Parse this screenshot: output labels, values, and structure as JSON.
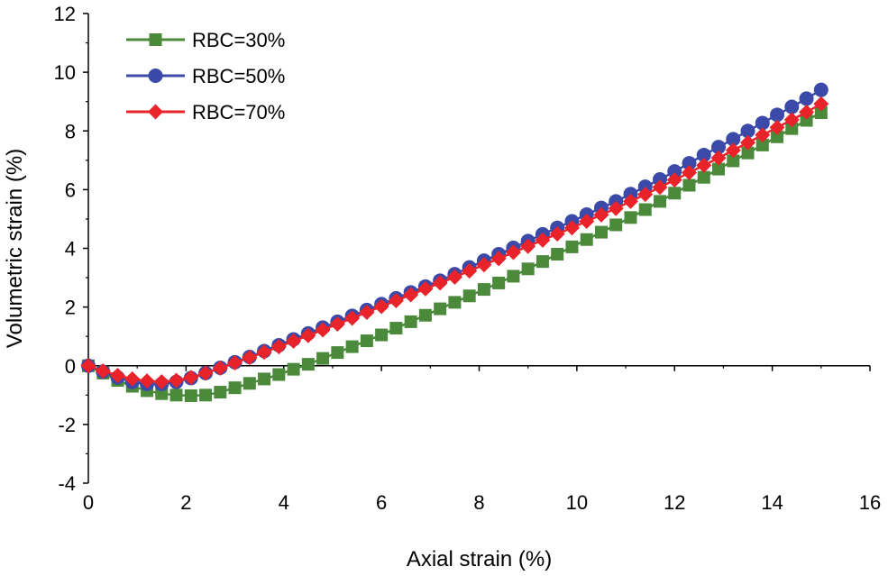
{
  "chart_data": {
    "type": "line",
    "title": "",
    "xlabel": "Axial strain (%)",
    "ylabel": "Volumetric strain (%)",
    "xlim": [
      0,
      16
    ],
    "ylim": [
      -4,
      12
    ],
    "xticks": [
      0,
      2,
      4,
      6,
      8,
      10,
      12,
      14,
      16
    ],
    "yticks": [
      -4,
      -2,
      0,
      2,
      4,
      6,
      8,
      10,
      12
    ],
    "legend_position": "top-left",
    "grid": false,
    "series": [
      {
        "name": "RBC=30%",
        "color": "#4a8a3a",
        "marker": "square",
        "x": [
          0,
          0.3,
          0.6,
          0.9,
          1.2,
          1.5,
          1.8,
          2.1,
          2.4,
          2.7,
          3.0,
          3.3,
          3.6,
          3.9,
          4.2,
          4.5,
          4.8,
          5.1,
          5.4,
          5.7,
          6.0,
          6.3,
          6.6,
          6.9,
          7.2,
          7.5,
          7.8,
          8.1,
          8.4,
          8.7,
          9.0,
          9.3,
          9.6,
          9.9,
          10.2,
          10.5,
          10.8,
          11.1,
          11.4,
          11.7,
          12.0,
          12.3,
          12.6,
          12.9,
          13.2,
          13.5,
          13.8,
          14.1,
          14.4,
          14.7,
          15.0
        ],
        "y": [
          0,
          -0.25,
          -0.5,
          -0.7,
          -0.85,
          -0.95,
          -1.0,
          -1.02,
          -1.0,
          -0.9,
          -0.75,
          -0.6,
          -0.45,
          -0.3,
          -0.12,
          0.05,
          0.25,
          0.45,
          0.65,
          0.85,
          1.05,
          1.28,
          1.5,
          1.72,
          1.94,
          2.16,
          2.38,
          2.6,
          2.82,
          3.05,
          3.3,
          3.55,
          3.8,
          4.05,
          4.3,
          4.55,
          4.8,
          5.05,
          5.32,
          5.6,
          5.88,
          6.15,
          6.42,
          6.7,
          6.98,
          7.25,
          7.52,
          7.8,
          8.08,
          8.36,
          8.62
        ]
      },
      {
        "name": "RBC=50%",
        "color": "#3b4aa8",
        "marker": "circle",
        "x": [
          0,
          0.3,
          0.6,
          0.9,
          1.2,
          1.5,
          1.8,
          2.1,
          2.4,
          2.7,
          3.0,
          3.3,
          3.6,
          3.9,
          4.2,
          4.5,
          4.8,
          5.1,
          5.4,
          5.7,
          6.0,
          6.3,
          6.6,
          6.9,
          7.2,
          7.5,
          7.8,
          8.1,
          8.4,
          8.7,
          9.0,
          9.3,
          9.6,
          9.9,
          10.2,
          10.5,
          10.8,
          11.1,
          11.4,
          11.7,
          12.0,
          12.3,
          12.6,
          12.9,
          13.2,
          13.5,
          13.8,
          14.1,
          14.4,
          14.7,
          15.0
        ],
        "y": [
          0,
          -0.2,
          -0.4,
          -0.55,
          -0.62,
          -0.62,
          -0.55,
          -0.42,
          -0.25,
          -0.07,
          0.12,
          0.3,
          0.5,
          0.7,
          0.9,
          1.1,
          1.3,
          1.5,
          1.7,
          1.9,
          2.1,
          2.3,
          2.5,
          2.7,
          2.9,
          3.12,
          3.35,
          3.58,
          3.8,
          4.02,
          4.25,
          4.48,
          4.7,
          4.92,
          5.15,
          5.38,
          5.6,
          5.85,
          6.1,
          6.35,
          6.62,
          6.9,
          7.18,
          7.45,
          7.72,
          8.0,
          8.27,
          8.55,
          8.82,
          9.1,
          9.4
        ]
      },
      {
        "name": "RBC=70%",
        "color": "#e8232a",
        "marker": "diamond",
        "x": [
          0,
          0.3,
          0.6,
          0.9,
          1.2,
          1.5,
          1.8,
          2.1,
          2.4,
          2.7,
          3.0,
          3.3,
          3.6,
          3.9,
          4.2,
          4.5,
          4.8,
          5.1,
          5.4,
          5.7,
          6.0,
          6.3,
          6.6,
          6.9,
          7.2,
          7.5,
          7.8,
          8.1,
          8.4,
          8.7,
          9.0,
          9.3,
          9.6,
          9.9,
          10.2,
          10.5,
          10.8,
          11.1,
          11.4,
          11.7,
          12.0,
          12.3,
          12.6,
          12.9,
          13.2,
          13.5,
          13.8,
          14.1,
          14.4,
          14.7,
          15.0
        ],
        "y": [
          0,
          -0.18,
          -0.33,
          -0.45,
          -0.52,
          -0.55,
          -0.5,
          -0.4,
          -0.25,
          -0.08,
          0.1,
          0.28,
          0.46,
          0.65,
          0.84,
          1.03,
          1.22,
          1.42,
          1.62,
          1.82,
          2.02,
          2.22,
          2.42,
          2.62,
          2.82,
          3.02,
          3.23,
          3.44,
          3.65,
          3.86,
          4.07,
          4.28,
          4.49,
          4.7,
          4.92,
          5.14,
          5.36,
          5.6,
          5.84,
          6.08,
          6.33,
          6.58,
          6.83,
          7.08,
          7.34,
          7.6,
          7.86,
          8.12,
          8.38,
          8.64,
          8.92
        ]
      }
    ]
  }
}
